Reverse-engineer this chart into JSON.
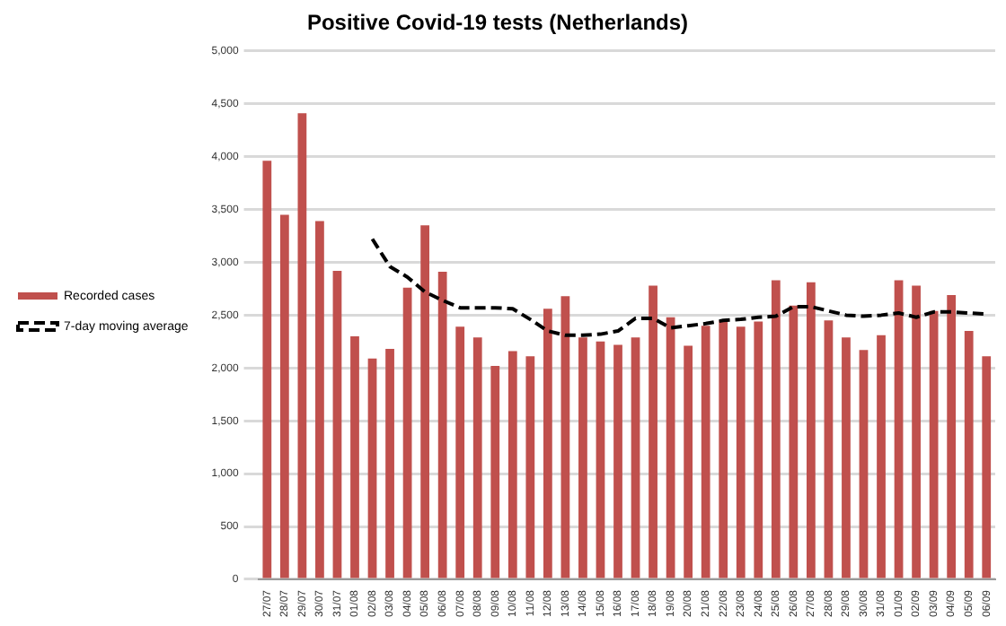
{
  "chart_data": {
    "type": "bar",
    "title": "Positive Covid-19 tests (Netherlands)",
    "categories": [
      "27/07",
      "28/07",
      "29/07",
      "30/07",
      "31/07",
      "01/08",
      "02/08",
      "03/08",
      "04/08",
      "05/08",
      "06/08",
      "07/08",
      "08/08",
      "09/08",
      "10/08",
      "11/08",
      "12/08",
      "13/08",
      "14/08",
      "15/08",
      "16/08",
      "17/08",
      "18/08",
      "19/08",
      "20/08",
      "21/08",
      "22/08",
      "23/08",
      "24/08",
      "25/08",
      "26/08",
      "27/08",
      "28/08",
      "29/08",
      "30/08",
      "31/08",
      "01/09",
      "02/09",
      "03/09",
      "04/09",
      "05/09",
      "06/09"
    ],
    "series": [
      {
        "name": "Recorded cases",
        "color": "#c0504d",
        "values": [
          3960,
          3450,
          4410,
          3390,
          2920,
          2300,
          2090,
          2180,
          2760,
          3350,
          2910,
          2390,
          2290,
          2020,
          2160,
          2110,
          2560,
          2680,
          2290,
          2250,
          2220,
          2290,
          2780,
          2480,
          2210,
          2400,
          2450,
          2390,
          2440,
          2830,
          2590,
          2810,
          2450,
          2290,
          2170,
          2310,
          2830,
          2780,
          2540,
          2690,
          2350,
          2110
        ]
      },
      {
        "name": "7-day moving average",
        "type": "line",
        "color": "#000000",
        "line_style": "dashed",
        "marker": "none",
        "values": [
          null,
          null,
          null,
          null,
          null,
          null,
          3220,
          2960,
          2860,
          2720,
          2640,
          2570,
          2570,
          2570,
          2560,
          2460,
          2350,
          2310,
          2310,
          2320,
          2350,
          2470,
          2470,
          2380,
          2400,
          2420,
          2450,
          2460,
          2480,
          2490,
          2580,
          2580,
          2540,
          2500,
          2490,
          2500,
          2520,
          2480,
          2530,
          2530,
          2520,
          2510
        ]
      }
    ],
    "ylim": [
      0,
      5000
    ],
    "yticks": [
      0,
      500,
      {
        "value": 1000,
        "label": "1,000"
      },
      {
        "value": 1500,
        "label": "1,500"
      },
      {
        "value": 2000,
        "label": "2,000"
      },
      {
        "value": 2500,
        "label": "2,500"
      },
      {
        "value": 3000,
        "label": "3,000"
      },
      {
        "value": 3500,
        "label": "3,500"
      },
      {
        "value": 4000,
        "label": "4,000"
      },
      {
        "value": 4500,
        "label": "4,500"
      },
      {
        "value": 5000,
        "label": "5,000"
      }
    ],
    "grid": "y",
    "legend": "left"
  }
}
